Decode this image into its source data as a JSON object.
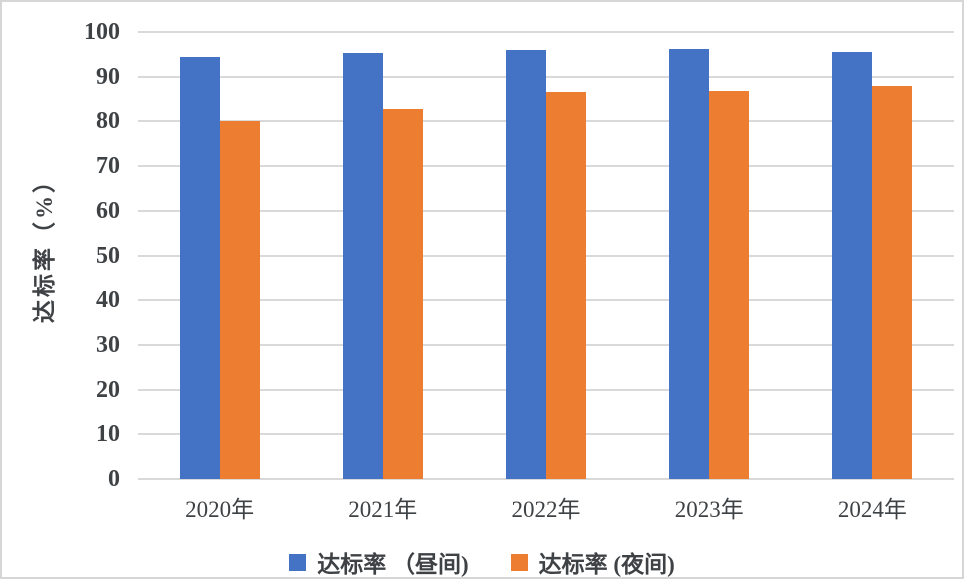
{
  "chart_data": {
    "type": "bar",
    "title": "",
    "categories": [
      "2020年",
      "2021年",
      "2022年",
      "2023年",
      "2024年"
    ],
    "series": [
      {
        "name": "达标率 （昼间)",
        "color": "#4472C4",
        "values": [
          94.5,
          95.4,
          95.9,
          96.1,
          95.6
        ]
      },
      {
        "name": "达标率 (夜间)",
        "color": "#ED7D31",
        "values": [
          80.0,
          82.8,
          86.5,
          86.9,
          88.0
        ]
      }
    ],
    "xlabel": "",
    "ylabel": "达标率（%）",
    "ylim": [
      0,
      100
    ],
    "yticks": [
      0,
      10,
      20,
      30,
      40,
      50,
      60,
      70,
      80,
      90,
      100
    ],
    "grid": true,
    "legend_position": "bottom",
    "gridline_color": "#d9d9d9",
    "text_color": "#3f4245",
    "border_color": "#d6d6d6"
  }
}
